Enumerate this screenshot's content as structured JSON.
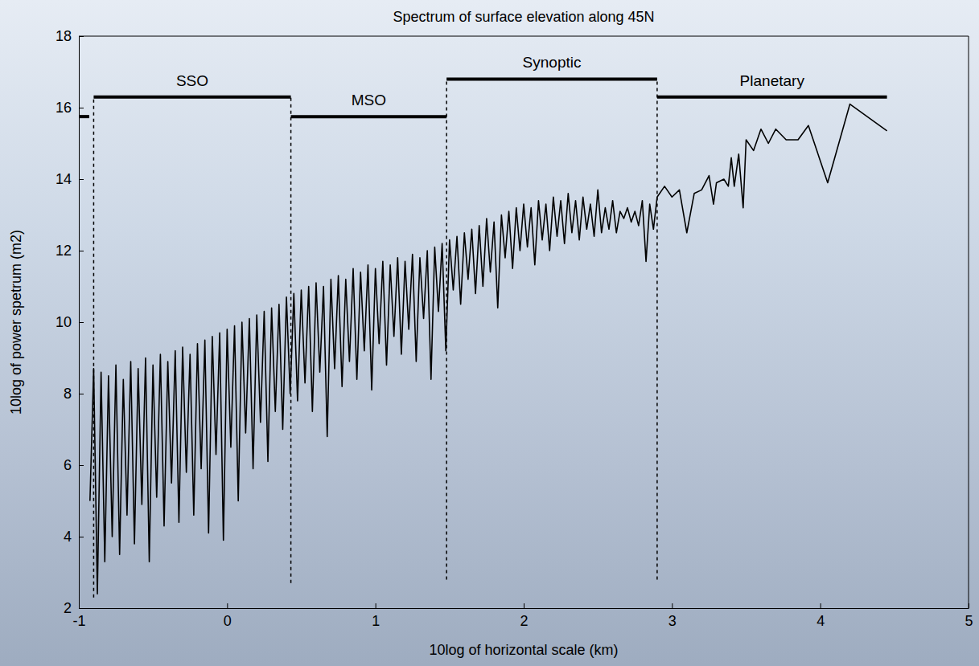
{
  "chart_data": {
    "type": "line",
    "title": "Spectrum of surface elevation along 45N",
    "x_label": "10log of horizontal scale (km)",
    "y_label": "10log of power spetrum (m2)",
    "xlim": [
      -1,
      5
    ],
    "ylim": [
      2,
      18
    ],
    "xticks": [
      -1,
      0,
      1,
      2,
      3,
      4,
      5
    ],
    "yticks": [
      2,
      4,
      6,
      8,
      10,
      12,
      14,
      16,
      18
    ],
    "grid": false,
    "x": [
      -0.925,
      -0.9,
      -0.875,
      -0.85,
      -0.825,
      -0.8,
      -0.775,
      -0.75,
      -0.725,
      -0.7,
      -0.675,
      -0.65,
      -0.625,
      -0.6,
      -0.575,
      -0.55,
      -0.525,
      -0.5,
      -0.475,
      -0.45,
      -0.425,
      -0.4,
      -0.375,
      -0.35,
      -0.325,
      -0.3,
      -0.275,
      -0.25,
      -0.225,
      -0.2,
      -0.175,
      -0.15,
      -0.125,
      -0.1,
      -0.075,
      -0.05,
      -0.025,
      0,
      0.025,
      0.05,
      0.075,
      0.1,
      0.125,
      0.15,
      0.175,
      0.2,
      0.225,
      0.25,
      0.275,
      0.3,
      0.325,
      0.35,
      0.375,
      0.4,
      0.425,
      0.45,
      0.475,
      0.5,
      0.525,
      0.55,
      0.575,
      0.6,
      0.625,
      0.65,
      0.675,
      0.7,
      0.725,
      0.75,
      0.775,
      0.8,
      0.825,
      0.85,
      0.875,
      0.9,
      0.925,
      0.95,
      0.975,
      1.0,
      1.025,
      1.05,
      1.075,
      1.1,
      1.125,
      1.15,
      1.175,
      1.2,
      1.225,
      1.25,
      1.275,
      1.3,
      1.325,
      1.35,
      1.375,
      1.4,
      1.425,
      1.45,
      1.475,
      1.5,
      1.525,
      1.55,
      1.575,
      1.6,
      1.625,
      1.65,
      1.675,
      1.7,
      1.725,
      1.75,
      1.775,
      1.8,
      1.825,
      1.85,
      1.875,
      1.9,
      1.925,
      1.95,
      1.975,
      2.0,
      2.025,
      2.05,
      2.075,
      2.1,
      2.125,
      2.15,
      2.175,
      2.2,
      2.225,
      2.25,
      2.275,
      2.3,
      2.325,
      2.35,
      2.375,
      2.4,
      2.425,
      2.45,
      2.475,
      2.5,
      2.525,
      2.55,
      2.575,
      2.6,
      2.625,
      2.65,
      2.675,
      2.7,
      2.725,
      2.75,
      2.775,
      2.8,
      2.825,
      2.85,
      2.875,
      2.9,
      2.95,
      3.0,
      3.05,
      3.1,
      3.15,
      3.2,
      3.25,
      3.28,
      3.3,
      3.35,
      3.38,
      3.4,
      3.42,
      3.45,
      3.48,
      3.5,
      3.55,
      3.6,
      3.65,
      3.7,
      3.77,
      3.85,
      3.92,
      4.05,
      4.2,
      4.45
    ],
    "series": [
      {
        "color": "#000000",
        "values": [
          5.0,
          8.7,
          2.4,
          8.6,
          3.3,
          8.5,
          4.0,
          8.8,
          3.5,
          8.4,
          4.6,
          8.9,
          3.8,
          8.7,
          4.9,
          9.0,
          3.3,
          8.8,
          5.1,
          9.1,
          4.3,
          8.9,
          5.5,
          9.2,
          4.4,
          9.3,
          5.8,
          9.1,
          4.6,
          9.4,
          5.9,
          9.5,
          4.1,
          9.6,
          6.3,
          9.7,
          3.9,
          9.8,
          6.5,
          9.9,
          5.0,
          10.0,
          6.9,
          10.1,
          5.9,
          10.2,
          7.2,
          10.3,
          6.1,
          10.4,
          7.5,
          10.5,
          7.0,
          10.7,
          8.0,
          10.8,
          7.8,
          10.9,
          8.3,
          11.0,
          7.5,
          11.1,
          8.6,
          11.0,
          6.8,
          11.2,
          8.7,
          11.3,
          8.2,
          11.2,
          8.9,
          11.5,
          8.4,
          11.4,
          9.2,
          11.6,
          8.1,
          11.5,
          9.4,
          11.7,
          8.8,
          11.6,
          9.6,
          11.8,
          9.1,
          11.7,
          9.8,
          11.9,
          8.9,
          11.8,
          10.1,
          12.0,
          8.4,
          12.1,
          10.3,
          12.2,
          9.2,
          12.3,
          10.9,
          12.4,
          10.5,
          12.5,
          11.2,
          12.6,
          10.8,
          12.7,
          11.0,
          12.9,
          11.4,
          12.8,
          10.4,
          13.0,
          11.8,
          13.1,
          11.5,
          13.2,
          12.0,
          13.3,
          12.1,
          13.2,
          11.6,
          13.4,
          12.3,
          13.3,
          12.0,
          13.5,
          12.4,
          13.4,
          12.2,
          13.6,
          12.5,
          13.4,
          12.3,
          13.5,
          12.6,
          13.3,
          12.4,
          13.7,
          12.5,
          13.2,
          12.6,
          13.4,
          12.5,
          13.1,
          12.9,
          13.2,
          12.8,
          13.1,
          12.7,
          13.4,
          11.7,
          13.3,
          12.6,
          13.5,
          13.8,
          13.5,
          13.7,
          12.5,
          13.6,
          13.7,
          14.1,
          13.3,
          13.9,
          14.0,
          13.8,
          14.6,
          13.8,
          14.7,
          13.2,
          15.1,
          14.8,
          15.4,
          15.0,
          15.4,
          15.1,
          15.1,
          15.5,
          13.9,
          16.1,
          15.35
        ]
      }
    ],
    "regimes": [
      {
        "x0": -1,
        "x1": -0.93,
        "y": 15.75
      },
      {
        "label": "SSO",
        "x0": -0.9,
        "x1": 0.43,
        "y": 16.3
      },
      {
        "label": "MSO",
        "x0": 0.43,
        "x1": 1.48,
        "y": 15.75
      },
      {
        "label": "Synoptic",
        "x0": 1.48,
        "x1": 2.9,
        "y": 16.8
      },
      {
        "label": "Planetary",
        "x0": 2.9,
        "x1": 4.45,
        "y": 16.3
      }
    ],
    "dividers": [
      {
        "x": -0.9,
        "y0": 2.3,
        "y1": 16.3
      },
      {
        "x": 0.43,
        "y0": 2.7,
        "y1": 16.3
      },
      {
        "x": 1.48,
        "y0": 2.8,
        "y1": 16.8
      },
      {
        "x": 2.9,
        "y0": 2.8,
        "y1": 16.8
      }
    ]
  }
}
